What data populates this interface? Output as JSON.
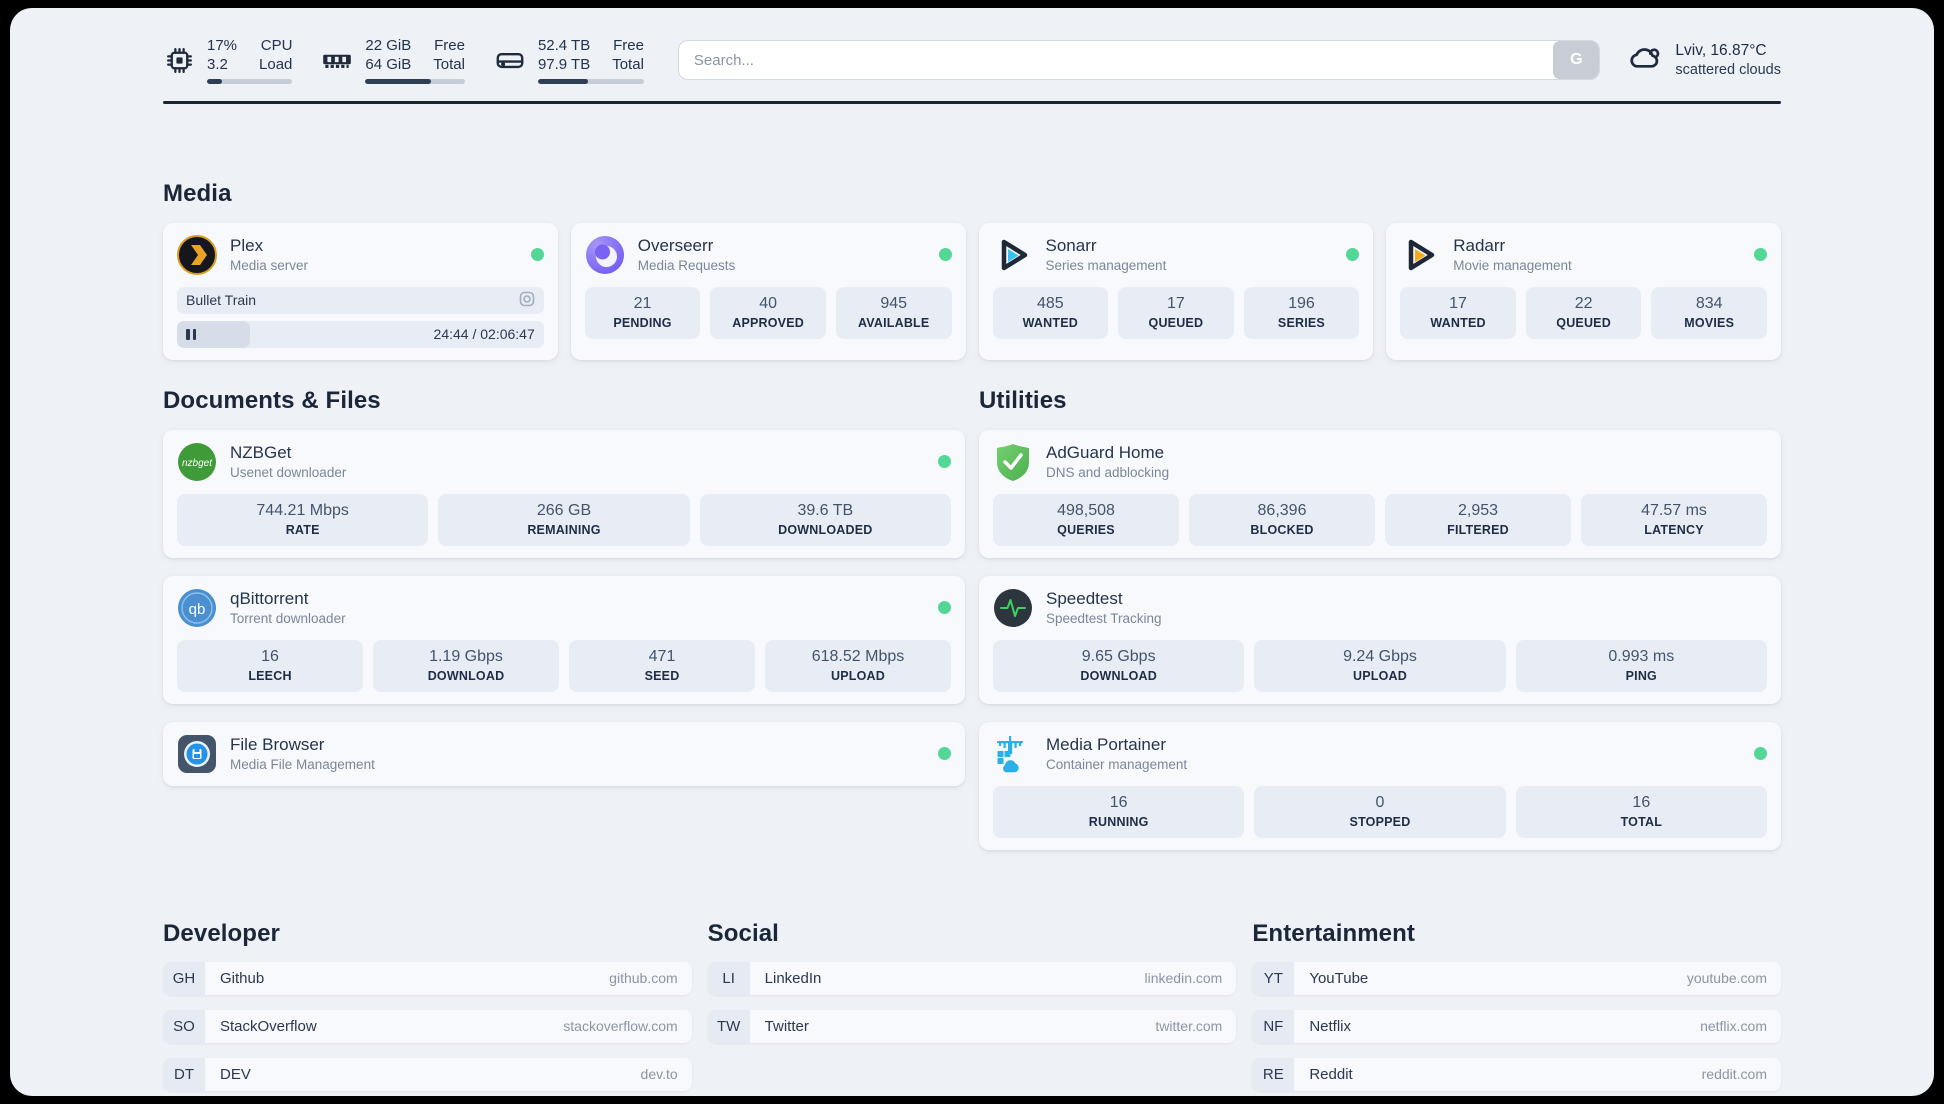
{
  "topbar": {
    "resources": [
      {
        "icon": "cpu-icon",
        "values": [
          "17%",
          "3.2"
        ],
        "labels": [
          "CPU",
          "Load"
        ],
        "progress": 18
      },
      {
        "icon": "memory-icon",
        "values": [
          "22 GiB",
          "64 GiB"
        ],
        "labels": [
          "Free",
          "Total"
        ],
        "progress": 66
      },
      {
        "icon": "disk-icon",
        "values": [
          "52.4 TB",
          "97.9 TB"
        ],
        "labels": [
          "Free",
          "Total"
        ],
        "progress": 47
      }
    ],
    "search": {
      "placeholder": "Search...",
      "button": "G"
    },
    "weather": {
      "line1": "Lviv, 16.87°C",
      "line2": "scattered clouds"
    }
  },
  "section_titles": {
    "media": "Media",
    "documents": "Documents & Files",
    "utilities": "Utilities",
    "developer": "Developer",
    "social": "Social",
    "entertainment": "Entertainment"
  },
  "media": {
    "plex": {
      "name": "Plex",
      "desc": "Media server",
      "now_playing": {
        "title": "Bullet Train",
        "time": "24:44 / 02:06:47",
        "progress": 20
      }
    },
    "overseerr": {
      "name": "Overseerr",
      "desc": "Media Requests",
      "stats": [
        {
          "value": "21",
          "label": "PENDING"
        },
        {
          "value": "40",
          "label": "APPROVED"
        },
        {
          "value": "945",
          "label": "AVAILABLE"
        }
      ]
    },
    "sonarr": {
      "name": "Sonarr",
      "desc": "Series management",
      "stats": [
        {
          "value": "485",
          "label": "WANTED"
        },
        {
          "value": "17",
          "label": "QUEUED"
        },
        {
          "value": "196",
          "label": "SERIES"
        }
      ]
    },
    "radarr": {
      "name": "Radarr",
      "desc": "Movie management",
      "stats": [
        {
          "value": "17",
          "label": "WANTED"
        },
        {
          "value": "22",
          "label": "QUEUED"
        },
        {
          "value": "834",
          "label": "MOVIES"
        }
      ]
    }
  },
  "documents": {
    "nzbget": {
      "name": "NZBGet",
      "desc": "Usenet downloader",
      "stats": [
        {
          "value": "744.21 Mbps",
          "label": "RATE"
        },
        {
          "value": "266 GB",
          "label": "REMAINING"
        },
        {
          "value": "39.6 TB",
          "label": "DOWNLOADED"
        }
      ]
    },
    "qbittorrent": {
      "name": "qBittorrent",
      "desc": "Torrent downloader",
      "stats": [
        {
          "value": "16",
          "label": "LEECH"
        },
        {
          "value": "1.19 Gbps",
          "label": "DOWNLOAD"
        },
        {
          "value": "471",
          "label": "SEED"
        },
        {
          "value": "618.52 Mbps",
          "label": "UPLOAD"
        }
      ]
    },
    "filebrowser": {
      "name": "File Browser",
      "desc": "Media File Management"
    }
  },
  "utilities": {
    "adguard": {
      "name": "AdGuard Home",
      "desc": "DNS and adblocking",
      "stats": [
        {
          "value": "498,508",
          "label": "QUERIES"
        },
        {
          "value": "86,396",
          "label": "BLOCKED"
        },
        {
          "value": "2,953",
          "label": "FILTERED"
        },
        {
          "value": "47.57 ms",
          "label": "LATENCY"
        }
      ]
    },
    "speedtest": {
      "name": "Speedtest",
      "desc": "Speedtest Tracking",
      "stats": [
        {
          "value": "9.65 Gbps",
          "label": "DOWNLOAD"
        },
        {
          "value": "9.24 Gbps",
          "label": "UPLOAD"
        },
        {
          "value": "0.993 ms",
          "label": "PING"
        }
      ]
    },
    "portainer": {
      "name": "Media Portainer",
      "desc": "Container management",
      "stats": [
        {
          "value": "16",
          "label": "RUNNING"
        },
        {
          "value": "0",
          "label": "STOPPED"
        },
        {
          "value": "16",
          "label": "TOTAL"
        }
      ]
    }
  },
  "bookmarks": {
    "developer": [
      {
        "abbr": "GH",
        "name": "Github",
        "url": "github.com"
      },
      {
        "abbr": "SO",
        "name": "StackOverflow",
        "url": "stackoverflow.com"
      },
      {
        "abbr": "DT",
        "name": "DEV",
        "url": "dev.to"
      }
    ],
    "social": [
      {
        "abbr": "LI",
        "name": "LinkedIn",
        "url": "linkedin.com"
      },
      {
        "abbr": "TW",
        "name": "Twitter",
        "url": "twitter.com"
      }
    ],
    "entertainment": [
      {
        "abbr": "YT",
        "name": "YouTube",
        "url": "youtube.com"
      },
      {
        "abbr": "NF",
        "name": "Netflix",
        "url": "netflix.com"
      },
      {
        "abbr": "RE",
        "name": "Reddit",
        "url": "reddit.com"
      }
    ]
  },
  "colors": {
    "status_online": "#52d796",
    "accent_dark": "#1b2533"
  }
}
